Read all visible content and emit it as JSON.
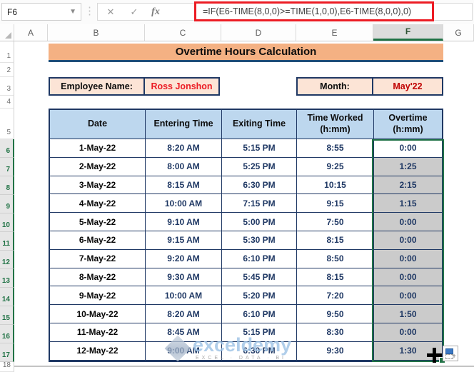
{
  "formula_bar": {
    "cell_reference": "F6",
    "cancel_icon": "✕",
    "enter_icon": "✓",
    "fx_label": "fx",
    "formula": "=IF(E6-TIME(8,0,0)>=TIME(1,0,0),E6-TIME(8,0,0),0)"
  },
  "column_headers": [
    "A",
    "B",
    "C",
    "D",
    "E",
    "F",
    "G"
  ],
  "row_headers": [
    1,
    2,
    3,
    4,
    5,
    6,
    7,
    8,
    9,
    10,
    11,
    12,
    13,
    14,
    15,
    16,
    17,
    18
  ],
  "selection": {
    "active_cell": "F6",
    "range": "F6:F17",
    "selected_column": "F",
    "selected_rows": [
      6,
      7,
      8,
      9,
      10,
      11,
      12,
      13,
      14,
      15,
      16,
      17
    ]
  },
  "title": "Overtime Hours Calculation",
  "employee": {
    "label": "Employee Name:",
    "value": "Ross Jonshon"
  },
  "month": {
    "label": "Month:",
    "value": "May'22"
  },
  "table": {
    "columns": [
      {
        "label": "Date",
        "sub": ""
      },
      {
        "label": "Entering Time",
        "sub": ""
      },
      {
        "label": "Exiting Time",
        "sub": ""
      },
      {
        "label": "Time Worked",
        "sub": "(h:mm)"
      },
      {
        "label": "Overtime",
        "sub": "(h:mm)"
      }
    ],
    "rows": [
      {
        "date": "1-May-22",
        "entering": "8:20 AM",
        "exiting": "5:15 PM",
        "worked": "8:55",
        "overtime": "0:00"
      },
      {
        "date": "2-May-22",
        "entering": "8:00 AM",
        "exiting": "5:25 PM",
        "worked": "9:25",
        "overtime": "1:25"
      },
      {
        "date": "3-May-22",
        "entering": "8:15 AM",
        "exiting": "6:30 PM",
        "worked": "10:15",
        "overtime": "2:15"
      },
      {
        "date": "4-May-22",
        "entering": "10:00 AM",
        "exiting": "7:15 PM",
        "worked": "9:15",
        "overtime": "1:15"
      },
      {
        "date": "5-May-22",
        "entering": "9:10 AM",
        "exiting": "5:00 PM",
        "worked": "7:50",
        "overtime": "0:00"
      },
      {
        "date": "6-May-22",
        "entering": "9:15 AM",
        "exiting": "5:30 PM",
        "worked": "8:15",
        "overtime": "0:00"
      },
      {
        "date": "7-May-22",
        "entering": "9:20 AM",
        "exiting": "6:10 PM",
        "worked": "8:50",
        "overtime": "0:00"
      },
      {
        "date": "8-May-22",
        "entering": "9:30 AM",
        "exiting": "5:45 PM",
        "worked": "8:15",
        "overtime": "0:00"
      },
      {
        "date": "9-May-22",
        "entering": "10:00 AM",
        "exiting": "5:20 PM",
        "worked": "7:20",
        "overtime": "0:00"
      },
      {
        "date": "10-May-22",
        "entering": "8:20 AM",
        "exiting": "6:10 PM",
        "worked": "9:50",
        "overtime": "1:50"
      },
      {
        "date": "11-May-22",
        "entering": "8:45 AM",
        "exiting": "5:15 PM",
        "worked": "8:30",
        "overtime": "0:00"
      },
      {
        "date": "12-May-22",
        "entering": "9:00 AM",
        "exiting": "6:30 PM",
        "worked": "9:30",
        "overtime": "1:30"
      }
    ]
  },
  "watermark": {
    "text": "exceldemy",
    "subtext": "EXCEL · DATA · BI"
  },
  "colors": {
    "banner_fill": "#F4B183",
    "banner_underline": "#1F4E79",
    "table_header_fill": "#BDD7EE",
    "label_fill": "#FCE4D6",
    "table_border": "#1F3864",
    "employee_value_red": "#EB1C24",
    "month_value_red": "#C00000",
    "selection_green": "#217346",
    "selection_fill_gray": "#CBCBCB",
    "annotation_red": "#EC1C24"
  }
}
